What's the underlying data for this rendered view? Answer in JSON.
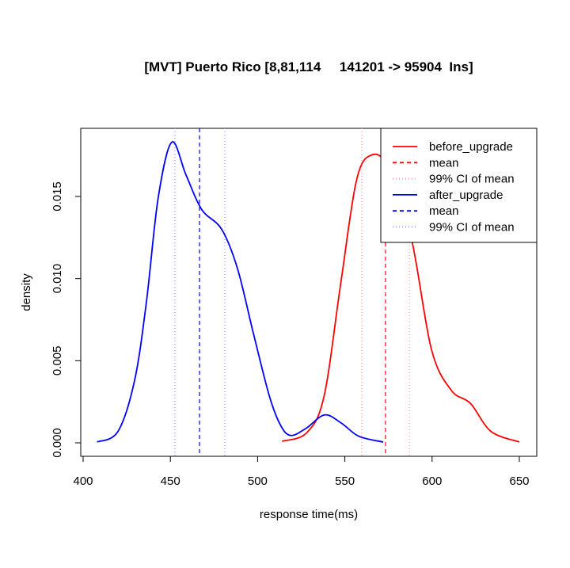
{
  "chart_data": {
    "type": "line",
    "title": "[MVT] Puerto Rico [8,81,114     141201 -> 95904  Ins]",
    "xlabel": "response time(ms)",
    "ylabel": "density",
    "xlim": [
      400,
      650
    ],
    "ylim": [
      0,
      0.018
    ],
    "x_ticks": [
      400,
      450,
      500,
      550,
      600,
      650
    ],
    "x_tick_labels": [
      "400",
      "450",
      "500",
      "550",
      "600",
      "650"
    ],
    "y_ticks": [
      0,
      0.005,
      0.01,
      0.015
    ],
    "y_tick_labels": [
      "0.000",
      "0.005",
      "0.010",
      "0.015"
    ],
    "grid": false,
    "legend_position": "top-right",
    "series": [
      {
        "name": "before_upgrade",
        "color": "#ff0000",
        "x": [
          514,
          528,
          538,
          547.5,
          556.5,
          564.7,
          574.7,
          588,
          599.6,
          611,
          622,
          633.7,
          650
        ],
        "y": [
          0.0001,
          0.0006,
          0.0028,
          0.0096,
          0.0159,
          0.0175,
          0.0168,
          0.0125,
          0.0057,
          0.0032,
          0.0024,
          0.0007,
          5e-05
        ]
      },
      {
        "name": "after_upgrade",
        "color": "#0000ff",
        "x": [
          408,
          420,
          429.5,
          436.3,
          443,
          450.8,
          459,
          468,
          479.4,
          488.5,
          497.5,
          506.6,
          513,
          519,
          528,
          538.4,
          548,
          558,
          572
        ],
        "y": [
          5e-05,
          0.0007,
          0.0038,
          0.0086,
          0.0149,
          0.0183,
          0.0163,
          0.0142,
          0.013,
          0.0106,
          0.0067,
          0.0029,
          0.0011,
          0.00045,
          0.0009,
          0.0017,
          0.0012,
          0.0004,
          5e-05
        ]
      }
    ],
    "reference_lines": [
      {
        "legend": "mean",
        "series": "before_upgrade",
        "style": "dashed",
        "x": 573.3,
        "color": "#ff0000"
      },
      {
        "legend": "99% CI  of mean",
        "series": "before_upgrade",
        "style": "dotted",
        "x": [
          559.7,
          587
        ],
        "color": "#ff9999"
      },
      {
        "legend": "mean",
        "series": "after_upgrade",
        "style": "dashed",
        "x": 466.7,
        "color": "#0000ff"
      },
      {
        "legend": "99% CI  of mean",
        "series": "after_upgrade",
        "style": "dotted",
        "x": [
          452.6,
          481.2
        ],
        "color": "#9999ff"
      }
    ],
    "legend": [
      "before_upgrade",
      "mean",
      "99% CI  of mean",
      "after_upgrade",
      "mean",
      "99% CI  of mean"
    ]
  }
}
